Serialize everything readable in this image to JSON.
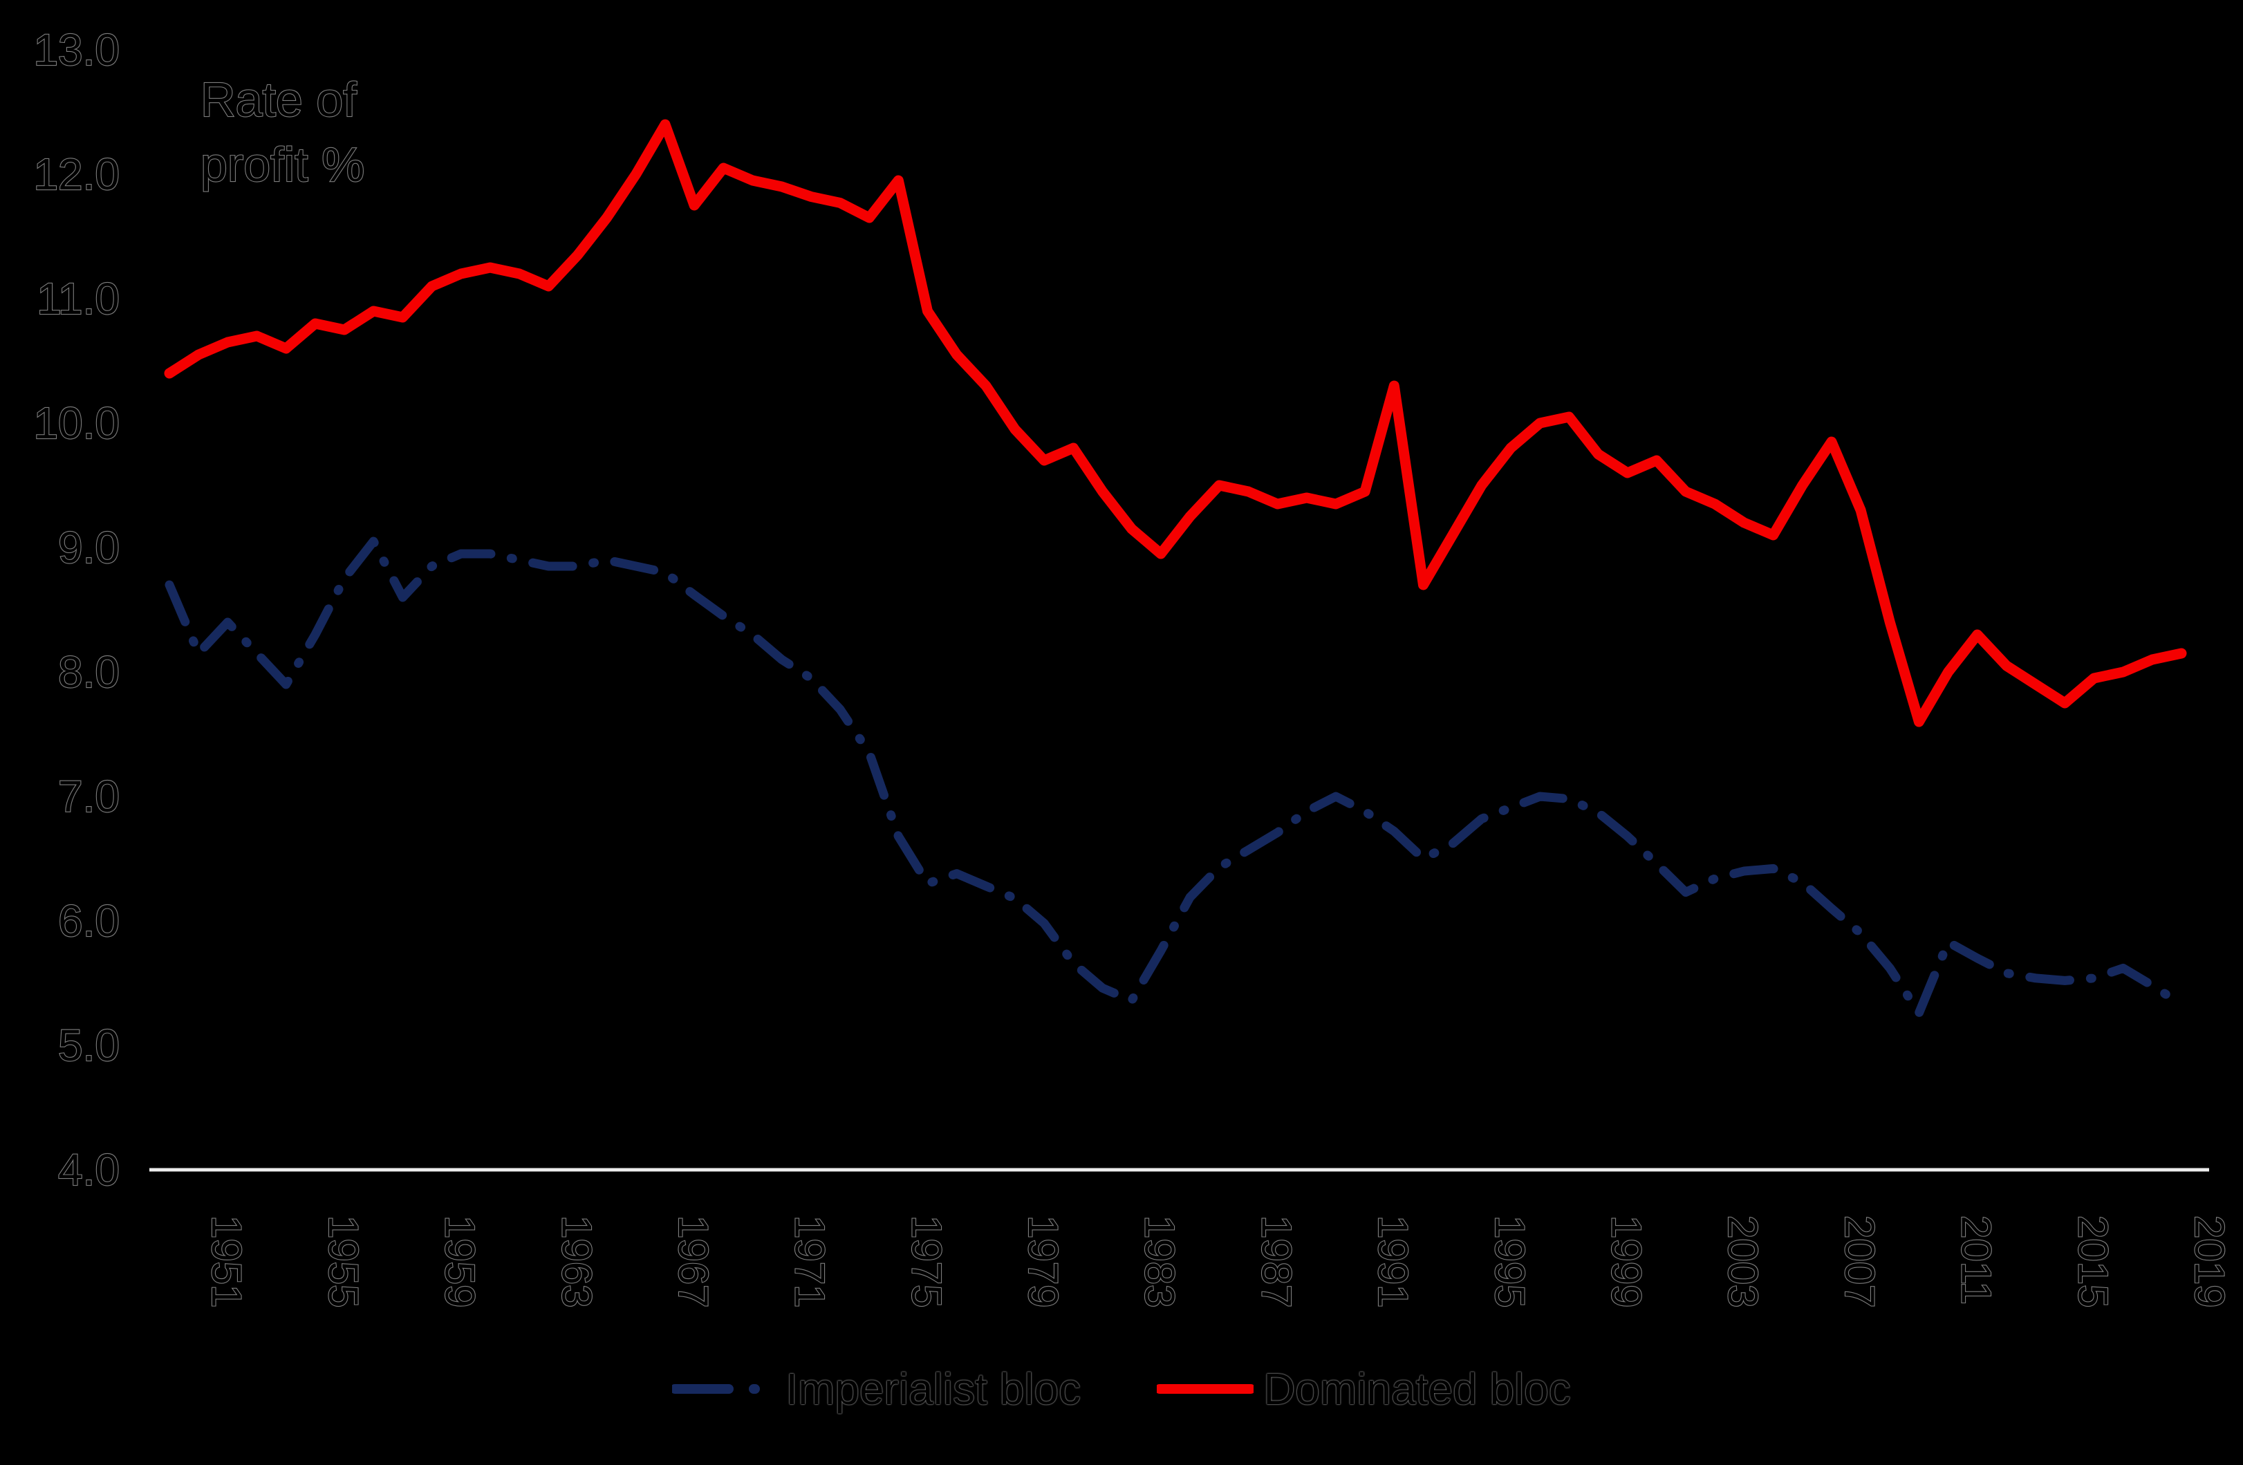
{
  "title_line1": "Rate of",
  "title_line2": "profit %",
  "legend": {
    "items": [
      {
        "label": "Imperialist bloc",
        "color": "#16295e",
        "style": "dash-dot"
      },
      {
        "label": "Dominated bloc",
        "color": "#f50000",
        "style": "solid"
      }
    ]
  },
  "y_axis": {
    "ticks": [
      "13.0",
      "12.0",
      "11.0",
      "10.0",
      "9.0",
      "8.0",
      "7.0",
      "6.0",
      "5.0",
      "4.0"
    ],
    "min": 4.0,
    "max": 13.0
  },
  "x_axis": {
    "ticks": [
      "1951",
      "1955",
      "1959",
      "1963",
      "1967",
      "1971",
      "1975",
      "1979",
      "1983",
      "1987",
      "1991",
      "1995",
      "1999",
      "2003",
      "2007",
      "2011",
      "2015",
      "2019"
    ]
  },
  "chart_data": {
    "type": "line",
    "title": "Rate of profit %",
    "xlabel": "",
    "ylabel": "Rate of profit %",
    "ylim": [
      4.0,
      13.0
    ],
    "grid": false,
    "legend_position": "bottom",
    "background": "#000000",
    "axis_line_color": "#ececec",
    "x": [
      1950,
      1951,
      1952,
      1953,
      1954,
      1955,
      1956,
      1957,
      1958,
      1959,
      1960,
      1961,
      1962,
      1963,
      1964,
      1965,
      1966,
      1967,
      1968,
      1969,
      1970,
      1971,
      1972,
      1973,
      1974,
      1975,
      1976,
      1977,
      1978,
      1979,
      1980,
      1981,
      1982,
      1983,
      1984,
      1985,
      1986,
      1987,
      1988,
      1989,
      1990,
      1991,
      1992,
      1993,
      1994,
      1995,
      1996,
      1997,
      1998,
      1999,
      2000,
      2001,
      2002,
      2003,
      2004,
      2005,
      2006,
      2007,
      2008,
      2009,
      2010,
      2011,
      2012,
      2013,
      2014,
      2015,
      2016,
      2017,
      2018,
      2019
    ],
    "series": [
      {
        "name": "Imperialist bloc",
        "color": "#16295e",
        "dash": true,
        "values": [
          8.7,
          8.15,
          8.4,
          8.15,
          7.9,
          8.3,
          8.75,
          9.05,
          8.6,
          8.85,
          8.95,
          8.95,
          8.9,
          8.85,
          8.85,
          8.9,
          8.85,
          8.8,
          8.62,
          8.45,
          8.3,
          8.1,
          7.95,
          7.7,
          7.35,
          6.68,
          6.3,
          6.38,
          6.28,
          6.18,
          5.98,
          5.66,
          5.46,
          5.36,
          5.76,
          6.19,
          6.43,
          6.57,
          6.71,
          6.88,
          7.0,
          6.88,
          6.72,
          6.5,
          6.62,
          6.82,
          6.91,
          7.0,
          6.98,
          6.87,
          6.68,
          6.46,
          6.23,
          6.34,
          6.4,
          6.42,
          6.31,
          6.1,
          5.9,
          5.62,
          5.26,
          5.83,
          5.7,
          5.58,
          5.54,
          5.52,
          5.54,
          5.62,
          5.48,
          5.33
        ]
      },
      {
        "name": "Dominated bloc",
        "color": "#f50000",
        "dash": false,
        "values": [
          10.4,
          10.55,
          10.65,
          10.7,
          10.6,
          10.8,
          10.75,
          10.9,
          10.85,
          11.1,
          11.2,
          11.25,
          11.2,
          11.1,
          11.35,
          11.65,
          12.0,
          12.4,
          11.75,
          12.05,
          11.95,
          11.9,
          11.82,
          11.77,
          11.65,
          11.95,
          10.9,
          10.55,
          10.3,
          9.95,
          9.7,
          9.8,
          9.45,
          9.15,
          8.95,
          9.25,
          9.5,
          9.45,
          9.35,
          9.4,
          9.35,
          9.45,
          10.3,
          8.7,
          9.1,
          9.5,
          9.8,
          10.0,
          10.05,
          9.75,
          9.6,
          9.7,
          9.45,
          9.35,
          9.2,
          9.1,
          9.5,
          9.85,
          9.3,
          8.4,
          7.6,
          8.0,
          8.3,
          8.05,
          7.9,
          7.75,
          7.95,
          8.0,
          8.1,
          8.15
        ]
      }
    ]
  }
}
